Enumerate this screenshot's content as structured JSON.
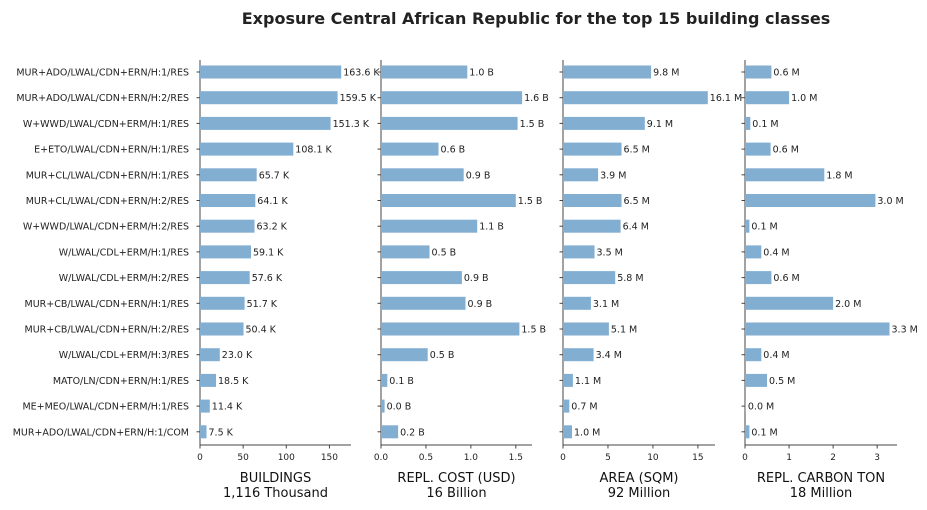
{
  "chart_data": {
    "type": "bar",
    "orientation": "horizontal",
    "title": "Exposure Central African Republic for the top 15 building classes",
    "categories": [
      "MUR+ADO/LWAL/CDN+ERN/H:1/RES",
      "MUR+ADO/LWAL/CDN+ERN/H:2/RES",
      "W+WWD/LWAL/CDN+ERM/H:1/RES",
      "E+ETO/LWAL/CDN+ERN/H:1/RES",
      "MUR+CL/LWAL/CDN+ERN/H:1/RES",
      "MUR+CL/LWAL/CDN+ERN/H:2/RES",
      "W+WWD/LWAL/CDN+ERM/H:2/RES",
      "W/LWAL/CDL+ERM/H:1/RES",
      "W/LWAL/CDL+ERM/H:2/RES",
      "MUR+CB/LWAL/CDN+ERN/H:1/RES",
      "MUR+CB/LWAL/CDN+ERN/H:2/RES",
      "W/LWAL/CDL+ERM/H:3/RES",
      "MATO/LN/CDN+ERN/H:1/RES",
      "ME+MEO/LWAL/CDN+ERM/H:1/RES",
      "MUR+ADO/LWAL/CDN+ERN/H:1/COM"
    ],
    "bar_color": "#82aed2",
    "panels": [
      {
        "xlabel": "BUILDINGS",
        "total": "1,116 Thousand",
        "xlim": [
          0,
          175
        ],
        "xticks": [
          0,
          50,
          100,
          150
        ],
        "xtick_labels": [
          "0",
          "50",
          "100",
          "150"
        ],
        "values": [
          163.6,
          159.5,
          151.3,
          108.1,
          65.7,
          64.1,
          63.2,
          59.1,
          57.6,
          51.7,
          50.4,
          23.0,
          18.5,
          11.4,
          7.5
        ],
        "labels": [
          "163.6 K",
          "159.5 K",
          "151.3 K",
          "108.1 K",
          "65.7 K",
          "64.1 K",
          "63.2 K",
          "59.1 K",
          "57.6 K",
          "51.7 K",
          "50.4 K",
          "23.0 K",
          "18.5 K",
          "11.4 K",
          "7.5 K"
        ]
      },
      {
        "xlabel": "REPL. COST (USD)",
        "total": "16 Billion",
        "xlim": [
          0,
          1.68
        ],
        "xticks": [
          0,
          0.5,
          1.0,
          1.5
        ],
        "xtick_labels": [
          "0.0",
          "0.5",
          "1.0",
          "1.5"
        ],
        "values": [
          0.96,
          1.57,
          1.52,
          0.64,
          0.92,
          1.5,
          1.07,
          0.54,
          0.9,
          0.94,
          1.54,
          0.52,
          0.07,
          0.04,
          0.19
        ],
        "labels": [
          "1.0 B",
          "1.6 B",
          "1.5 B",
          "0.6 B",
          "0.9 B",
          "1.5 B",
          "1.1 B",
          "0.5 B",
          "0.9 B",
          "0.9 B",
          "1.5 B",
          "0.5 B",
          "0.1 B",
          "0.0 B",
          "0.2 B"
        ]
      },
      {
        "xlabel": "AREA (SQM)",
        "total": "92 Million",
        "xlim": [
          0,
          16.9
        ],
        "xticks": [
          0,
          5,
          10,
          15
        ],
        "xtick_labels": [
          "0",
          "5",
          "10",
          "15"
        ],
        "values": [
          9.8,
          16.1,
          9.1,
          6.5,
          3.9,
          6.5,
          6.4,
          3.5,
          5.8,
          3.1,
          5.1,
          3.4,
          1.1,
          0.7,
          1.0
        ],
        "labels": [
          "9.8 M",
          "16.1 M",
          "9.1 M",
          "6.5 M",
          "3.9 M",
          "6.5 M",
          "6.4 M",
          "3.5 M",
          "5.8 M",
          "3.1 M",
          "5.1 M",
          "3.4 M",
          "1.1 M",
          "0.7 M",
          "1.0 M"
        ]
      },
      {
        "xlabel": "REPL. CARBON TON",
        "total": "18 Million",
        "xlim": [
          0,
          3.45
        ],
        "xticks": [
          0,
          1,
          2,
          3
        ],
        "xtick_labels": [
          "0",
          "1",
          "2",
          "3"
        ],
        "values": [
          0.6,
          1.0,
          0.12,
          0.58,
          1.8,
          2.96,
          0.1,
          0.37,
          0.6,
          2.0,
          3.28,
          0.37,
          0.5,
          0.02,
          0.1
        ],
        "labels": [
          "0.6 M",
          "1.0 M",
          "0.1 M",
          "0.6 M",
          "1.8 M",
          "3.0 M",
          "0.1 M",
          "0.4 M",
          "0.6 M",
          "2.0 M",
          "3.3 M",
          "0.4 M",
          "0.5 M",
          "0.0 M",
          "0.1 M"
        ]
      }
    ]
  }
}
